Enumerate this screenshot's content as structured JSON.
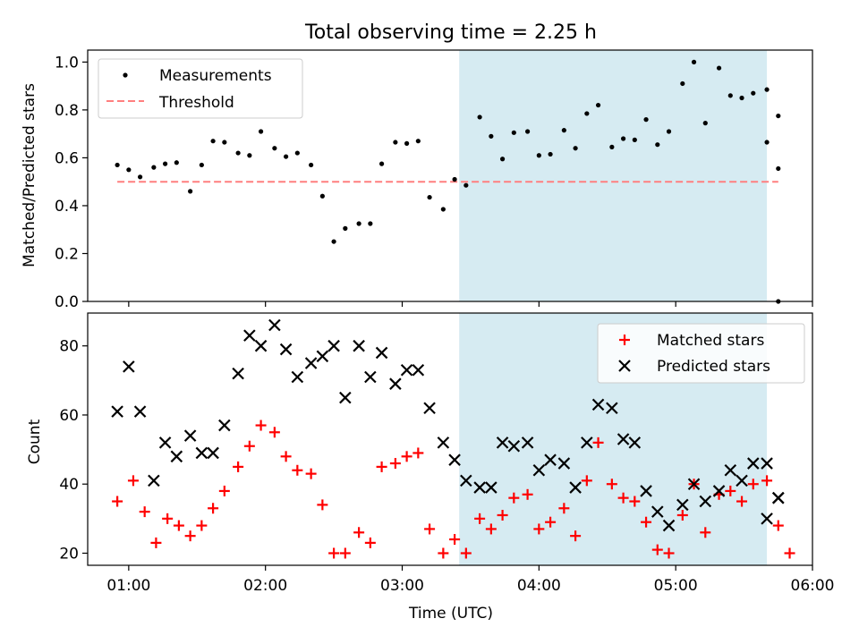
{
  "title": "Total observing time = 2.25 h",
  "xlabel": "Time (UTC)",
  "x_ticks": [
    "01:00",
    "02:00",
    "03:00",
    "04:00",
    "05:00",
    "06:00"
  ],
  "colors": {
    "measurement": "#000000",
    "threshold": "#ff7f7f",
    "matched": "#ff0000",
    "predicted": "#000000",
    "shade": "#add8e6"
  },
  "chart_data": [
    {
      "type": "scatter",
      "ylabel": "Matched/Predicted stars",
      "xlim": [
        "00:42",
        "06:00"
      ],
      "ylim": [
        0,
        1.05
      ],
      "y_ticks": [
        "0.0",
        "0.2",
        "0.4",
        "0.6",
        "0.8",
        "1.0"
      ],
      "shaded_interval": [
        "03:25",
        "05:40"
      ],
      "legend": {
        "placement": "top-left",
        "entries": [
          "Measurements",
          "Threshold"
        ]
      },
      "threshold": {
        "value": 0.5,
        "x_range": [
          "00:55",
          "05:45"
        ]
      },
      "series": [
        {
          "name": "Measurements",
          "x": [
            "00:55",
            "01:00",
            "01:05",
            "01:11",
            "01:16",
            "01:21",
            "01:27",
            "01:32",
            "01:37",
            "01:42",
            "01:48",
            "01:53",
            "01:58",
            "02:04",
            "02:09",
            "02:14",
            "02:20",
            "02:25",
            "02:30",
            "02:35",
            "02:41",
            "02:46",
            "02:51",
            "02:57",
            "03:02",
            "03:07",
            "03:12",
            "03:18",
            "03:23",
            "03:28",
            "03:34",
            "03:39",
            "03:44",
            "03:49",
            "03:55",
            "04:00",
            "04:05",
            "04:11",
            "04:16",
            "04:21",
            "04:26",
            "04:32",
            "04:37",
            "04:42",
            "04:47",
            "04:52",
            "04:57",
            "05:03",
            "05:08",
            "05:13",
            "05:19",
            "05:24",
            "05:29",
            "05:34",
            "05:40",
            "05:45"
          ],
          "y": [
            0.57,
            0.55,
            0.52,
            0.56,
            0.575,
            0.58,
            0.46,
            0.57,
            0.67,
            0.665,
            0.62,
            0.61,
            0.71,
            0.64,
            0.605,
            0.62,
            0.57,
            0.44,
            0.25,
            0.305,
            0.325,
            0.325,
            0.575,
            0.665,
            0.66,
            0.67,
            0.435,
            0.385,
            0.51,
            0.485,
            0.77,
            0.69,
            0.595,
            0.705,
            0.71,
            0.61,
            0.615,
            0.715,
            0.64,
            0.785,
            0.82,
            0.645,
            0.68,
            0.675,
            0.76,
            0.655,
            0.71,
            0.91,
            1.0,
            0.745,
            0.975,
            0.86,
            0.85,
            0.87,
            0.885,
            0.775
          ]
        },
        {
          "name": "",
          "x": [
            "05:40",
            "05:45"
          ],
          "y": [
            0.665,
            0.555
          ]
        },
        {
          "name": "",
          "x": [
            "05:45"
          ],
          "y": [
            0.0
          ]
        }
      ]
    },
    {
      "type": "scatter",
      "ylabel": "Count",
      "xlabel": "Time (UTC)",
      "xlim": [
        "00:42",
        "06:00"
      ],
      "ylim": [
        16.5,
        89.5
      ],
      "y_ticks": [
        "20",
        "40",
        "60",
        "80"
      ],
      "shaded_interval": [
        "03:25",
        "05:40"
      ],
      "legend": {
        "placement": "top-right",
        "entries": [
          "Matched stars",
          "Predicted stars"
        ]
      },
      "series": [
        {
          "name": "Matched stars",
          "x": [
            "00:55",
            "01:02",
            "01:07",
            "01:12",
            "01:17",
            "01:22",
            "01:27",
            "01:32",
            "01:37",
            "01:42",
            "01:48",
            "01:53",
            "01:58",
            "02:04",
            "02:09",
            "02:14",
            "02:20",
            "02:25",
            "02:30",
            "02:35",
            "02:41",
            "02:46",
            "02:51",
            "02:57",
            "03:02",
            "03:07",
            "03:12",
            "03:18",
            "03:23",
            "03:28",
            "03:34",
            "03:39",
            "03:44",
            "03:49",
            "03:55",
            "04:00",
            "04:05",
            "04:11",
            "04:16",
            "04:21",
            "04:26",
            "04:32",
            "04:37",
            "04:42",
            "04:47",
            "04:52",
            "04:57",
            "05:03",
            "05:08",
            "05:13",
            "05:19",
            "05:24",
            "05:29",
            "05:34",
            "05:40",
            "05:45",
            "05:50"
          ],
          "y": [
            35,
            41,
            32,
            23,
            30,
            28,
            25,
            28,
            33,
            38,
            45,
            51,
            57,
            55,
            48,
            44,
            43,
            34,
            20,
            20,
            26,
            23,
            45,
            46,
            48,
            49,
            27,
            20,
            24,
            20,
            30,
            27,
            31,
            36,
            37,
            27,
            29,
            33,
            25,
            41,
            52,
            40,
            36,
            35,
            29,
            21,
            20,
            31,
            40,
            26,
            37,
            38,
            35,
            40,
            41,
            28,
            20
          ]
        },
        {
          "name": "Predicted stars",
          "x": [
            "00:55",
            "01:00",
            "01:05",
            "01:11",
            "01:16",
            "01:21",
            "01:27",
            "01:32",
            "01:37",
            "01:42",
            "01:48",
            "01:53",
            "01:58",
            "02:04",
            "02:09",
            "02:14",
            "02:20",
            "02:25",
            "02:30",
            "02:35",
            "02:41",
            "02:46",
            "02:51",
            "02:57",
            "03:02",
            "03:07",
            "03:12",
            "03:18",
            "03:23",
            "03:28",
            "03:34",
            "03:39",
            "03:44",
            "03:49",
            "03:55",
            "04:00",
            "04:05",
            "04:11",
            "04:16",
            "04:21",
            "04:26",
            "04:32",
            "04:37",
            "04:42",
            "04:47",
            "04:52",
            "04:57",
            "05:03",
            "05:08",
            "05:13",
            "05:19",
            "05:24",
            "05:29",
            "05:34",
            "05:40",
            "05:45"
          ],
          "y": [
            61,
            74,
            61,
            41,
            52,
            48,
            54,
            49,
            49,
            57,
            72,
            83,
            80,
            86,
            79,
            71,
            75,
            77,
            80,
            65,
            80,
            71,
            78,
            69,
            73,
            73,
            62,
            52,
            47,
            41,
            39,
            39,
            52,
            51,
            52,
            44,
            47,
            46,
            39,
            52,
            63,
            62,
            53,
            52,
            38,
            32,
            28,
            34,
            40,
            35,
            38,
            44,
            41,
            46,
            46,
            36
          ]
        },
        {
          "name": "",
          "x": [
            "05:40",
            "05:45"
          ],
          "y": [
            30,
            36
          ]
        }
      ]
    }
  ]
}
